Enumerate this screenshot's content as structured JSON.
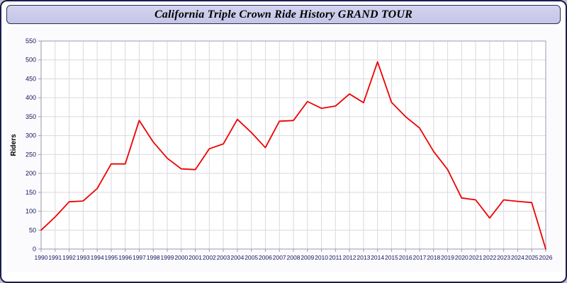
{
  "window": {
    "title": "California Triple Crown Ride History GRAND TOUR"
  },
  "chart_data": {
    "type": "line",
    "title": "California Triple Crown Ride History GRAND TOUR",
    "xlabel": "",
    "ylabel": "Riders",
    "ylim": [
      0,
      550
    ],
    "ytick_step": 50,
    "grid": true,
    "legend_position": "none",
    "x": [
      1990,
      1991,
      1992,
      1993,
      1994,
      1995,
      1996,
      1997,
      1998,
      1999,
      2000,
      2001,
      2002,
      2003,
      2004,
      2005,
      2006,
      2007,
      2008,
      2009,
      2010,
      2011,
      2012,
      2013,
      2014,
      2015,
      2016,
      2017,
      2018,
      2019,
      2020,
      2021,
      2022,
      2023,
      2024,
      2025,
      2026
    ],
    "series": [
      {
        "name": "Riders",
        "values": [
          50,
          85,
          125,
          127,
          160,
          225,
          225,
          340,
          283,
          240,
          212,
          210,
          265,
          278,
          343,
          308,
          268,
          338,
          340,
          390,
          372,
          378,
          410,
          387,
          495,
          388,
          350,
          320,
          258,
          210,
          135,
          130,
          82,
          130,
          126,
          123,
          0
        ]
      }
    ],
    "colors": {
      "line": "#ee0000",
      "grid": "#d9d9e0",
      "plot_bg": "#ffffff",
      "panel_bg": "#fbfbfe",
      "axis": "#9a9ab0",
      "tick_text": "#14145a",
      "title_bar_bg": "#ccccee",
      "window_border": "#1c1c52"
    }
  }
}
